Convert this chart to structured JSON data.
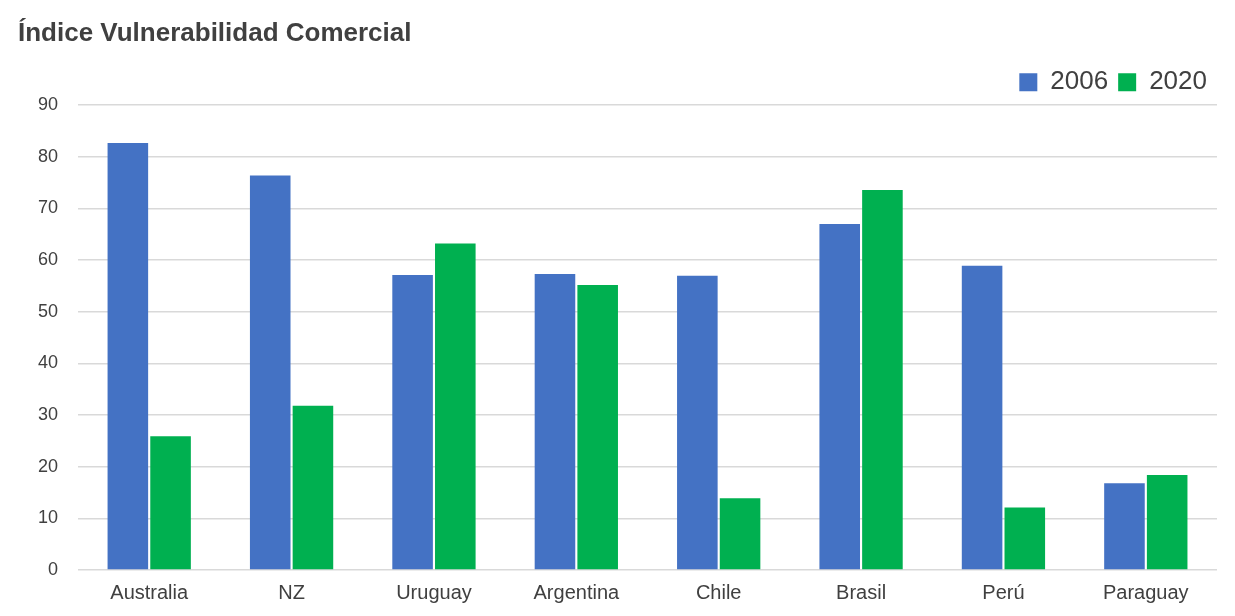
{
  "chart_data": {
    "type": "bar",
    "title": "Índice Vulnerabilidad Comercial",
    "categories": [
      "Australia",
      "NZ",
      "Uruguay",
      "Argentina",
      "Chile",
      "Brasil",
      "Perú",
      "Paraguay"
    ],
    "series": [
      {
        "name": "2006",
        "color": "#4472c4",
        "values": [
          82.7,
          76.4,
          57.1,
          57.3,
          57.0,
          67.0,
          58.9,
          16.8
        ]
      },
      {
        "name": "2020",
        "color": "#00b050",
        "values": [
          25.9,
          31.8,
          63.2,
          55.2,
          13.9,
          73.6,
          12.1,
          18.4
        ]
      }
    ],
    "ylim": [
      0,
      90
    ],
    "yticks": [
      0,
      10,
      20,
      30,
      40,
      50,
      60,
      70,
      80,
      90
    ],
    "grid": "y",
    "legend": "top right"
  }
}
